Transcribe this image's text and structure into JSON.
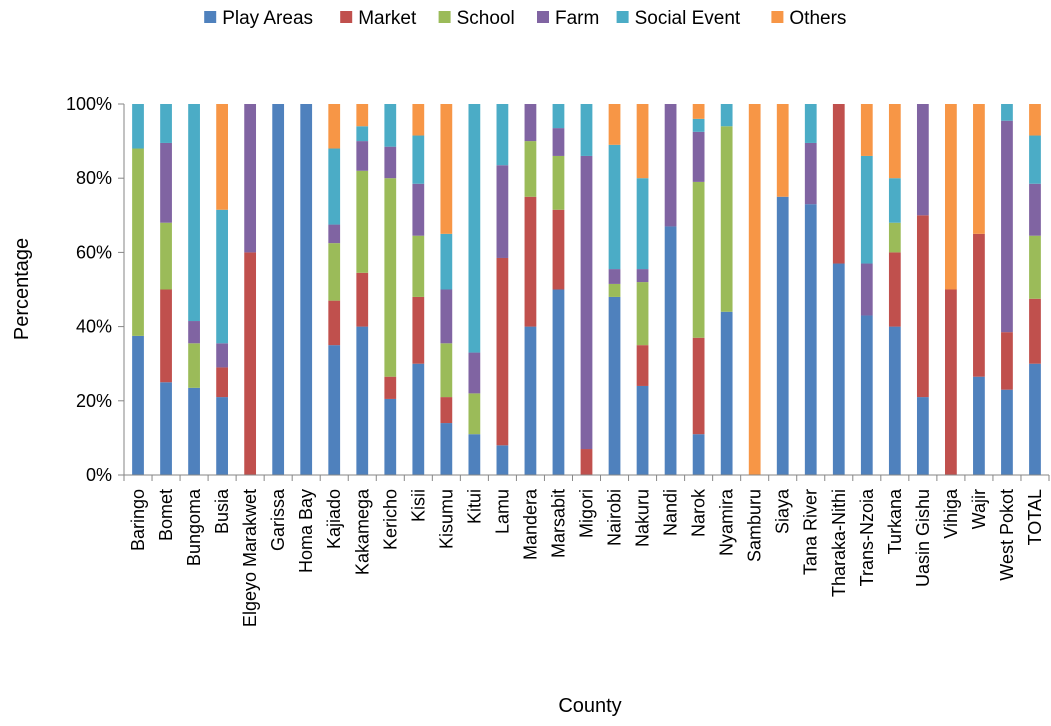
{
  "chart_data": {
    "type": "bar",
    "stacked": true,
    "xlabel": "County",
    "ylabel": "Percentage",
    "ylim": [
      0,
      100
    ],
    "yticks": [
      "0%",
      "20%",
      "40%",
      "60%",
      "80%",
      "100%"
    ],
    "grid": false,
    "legend_position": "top",
    "categories": [
      "Baringo",
      "Bomet",
      "Bungoma",
      "Busia",
      "Elgeyo Marakwet",
      "Garissa",
      "Homa Bay",
      "Kajiado",
      "Kakamega",
      "Kericho",
      "Kisii",
      "Kisumu",
      "Kitui",
      "Lamu",
      "Mandera",
      "Marsabit",
      "Migori",
      "Nairobi",
      "Nakuru",
      "Nandi",
      "Narok",
      "Nyamira",
      "Samburu",
      "Siaya",
      "Tana River",
      "Tharaka-Nithi",
      "Trans-Nzoia",
      "Turkana",
      "Uasin Gishu",
      "Vihiga",
      "Wajir",
      "West Pokot",
      "TOTAL"
    ],
    "series": [
      {
        "name": "Play Areas",
        "color": "#4F81BD",
        "values": [
          37.5,
          25,
          23.5,
          21,
          0,
          100,
          100,
          35,
          40,
          20.5,
          30,
          14,
          11,
          8,
          40,
          50,
          0,
          48,
          24,
          67,
          11,
          44,
          0,
          75,
          73,
          57,
          43,
          40,
          21,
          0,
          26.5,
          23,
          30
        ]
      },
      {
        "name": "Market",
        "color": "#C0504D",
        "values": [
          0,
          25,
          0,
          8,
          60,
          0,
          0,
          12,
          14.5,
          6,
          18,
          7,
          0,
          50.5,
          35,
          21.5,
          7,
          0,
          11,
          0,
          26,
          0,
          0,
          0,
          0,
          43,
          0,
          20,
          49,
          50,
          38.5,
          15.5,
          17.5
        ]
      },
      {
        "name": "School",
        "color": "#9BBB59",
        "values": [
          50.5,
          18,
          12,
          0,
          0,
          0,
          0,
          15.5,
          27.5,
          53.5,
          16.5,
          14.5,
          11,
          0,
          15,
          14.5,
          0,
          3.5,
          17,
          0,
          42,
          50,
          0,
          0,
          0,
          0,
          0,
          8,
          0,
          0,
          0,
          0,
          17
        ]
      },
      {
        "name": "Farm",
        "color": "#8064A2",
        "values": [
          0,
          21.5,
          6,
          6.5,
          40,
          0,
          0,
          5,
          8,
          8.5,
          14,
          14.5,
          11,
          25,
          10,
          7.5,
          79,
          4,
          3.5,
          33,
          13.5,
          0,
          0,
          0,
          16.5,
          0,
          14,
          0,
          30,
          0,
          0,
          57,
          14
        ]
      },
      {
        "name": "Social Event",
        "color": "#4BACC6",
        "values": [
          12,
          10.5,
          58.5,
          36,
          0,
          0,
          0,
          20.5,
          4,
          11.5,
          13,
          15,
          67,
          16.5,
          0,
          6.5,
          14,
          33.5,
          24.5,
          0,
          3.5,
          6,
          0,
          0,
          10.5,
          0,
          29,
          12,
          0,
          0,
          0,
          4.5,
          13
        ]
      },
      {
        "name": "Others",
        "color": "#F79646",
        "values": [
          0,
          0,
          0,
          28.5,
          0,
          0,
          0,
          12,
          6,
          0,
          8.5,
          35,
          0,
          0,
          0,
          0,
          0,
          11,
          20,
          0,
          4,
          0,
          100,
          25,
          0,
          0,
          14,
          20,
          0,
          50,
          35,
          0,
          8.5
        ]
      }
    ]
  }
}
